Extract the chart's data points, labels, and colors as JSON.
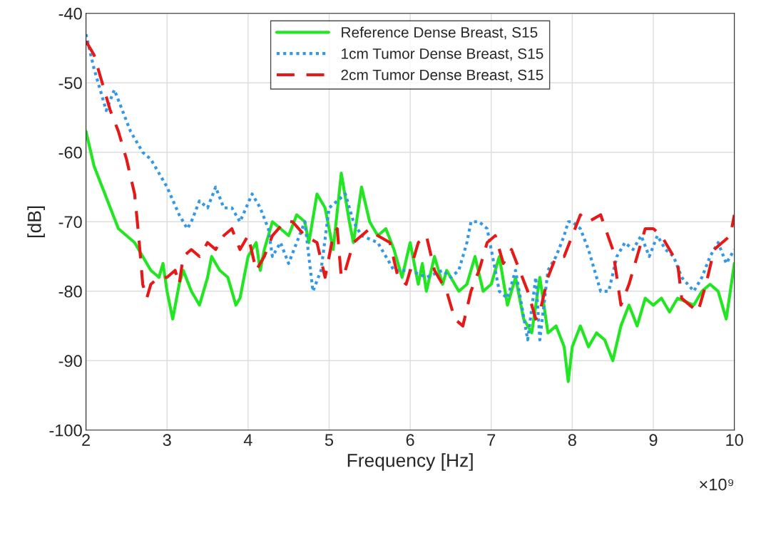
{
  "chart_data": {
    "type": "line",
    "xlabel": "Frequency [Hz]",
    "ylabel": "[dB]",
    "xlim": [
      2,
      10
    ],
    "ylim": [
      -100,
      -40
    ],
    "xticks": [
      2,
      3,
      4,
      5,
      6,
      7,
      8,
      9,
      10
    ],
    "yticks": [
      -100,
      -90,
      -80,
      -70,
      -60,
      -50,
      -40
    ],
    "grid": true,
    "legend": "top",
    "annotations": [
      "×10⁹"
    ],
    "series": [
      {
        "name": "Reference Dense Breast, S15",
        "color": "#22e622",
        "line_style": "solid",
        "x": [
          2.0,
          2.1,
          2.2,
          2.3,
          2.4,
          2.5,
          2.6,
          2.7,
          2.8,
          2.9,
          2.95,
          3.0,
          3.07,
          3.15,
          3.2,
          3.3,
          3.4,
          3.5,
          3.55,
          3.65,
          3.75,
          3.85,
          3.9,
          4.0,
          4.1,
          4.15,
          4.2,
          4.3,
          4.4,
          4.5,
          4.6,
          4.7,
          4.75,
          4.85,
          4.95,
          5.05,
          5.15,
          5.25,
          5.3,
          5.4,
          5.5,
          5.6,
          5.7,
          5.8,
          5.9,
          6.0,
          6.1,
          6.15,
          6.2,
          6.3,
          6.4,
          6.45,
          6.6,
          6.7,
          6.8,
          6.9,
          7.0,
          7.1,
          7.2,
          7.3,
          7.4,
          7.5,
          7.6,
          7.7,
          7.8,
          7.9,
          7.95,
          8.0,
          8.1,
          8.2,
          8.3,
          8.4,
          8.5,
          8.6,
          8.7,
          8.8,
          8.9,
          9.0,
          9.1,
          9.2,
          9.3,
          9.5,
          9.6,
          9.7,
          9.8,
          9.9,
          10.0
        ],
        "values": [
          -57,
          -62,
          -65,
          -68,
          -71,
          -72,
          -73,
          -75,
          -77,
          -78,
          -76,
          -80,
          -84,
          -79,
          -77,
          -80,
          -82,
          -78,
          -75,
          -77,
          -78,
          -82,
          -81,
          -75,
          -73,
          -77,
          -74,
          -70,
          -71,
          -72,
          -69,
          -70,
          -73,
          -66,
          -68,
          -74,
          -63,
          -70,
          -73,
          -65,
          -70,
          -72,
          -71,
          -74,
          -78,
          -73,
          -79,
          -76,
          -80,
          -75,
          -79,
          -77,
          -80,
          -79,
          -75,
          -80,
          -79,
          -75,
          -82,
          -78,
          -84,
          -86,
          -78,
          -86,
          -85,
          -88,
          -93,
          -88,
          -85,
          -88,
          -86,
          -87,
          -90,
          -85,
          -82,
          -85,
          -81,
          -82,
          -81,
          -83,
          -81,
          -82,
          -80,
          -79,
          -80,
          -84,
          -76
        ]
      },
      {
        "name": "1cm Tumor Dense Breast, S15",
        "color": "#3399e6",
        "line_style": "dotted",
        "x": [
          2.0,
          2.1,
          2.2,
          2.25,
          2.35,
          2.45,
          2.55,
          2.7,
          2.8,
          3.0,
          3.15,
          3.25,
          3.3,
          3.4,
          3.5,
          3.6,
          3.7,
          3.8,
          3.9,
          4.05,
          4.15,
          4.25,
          4.3,
          4.4,
          4.5,
          4.6,
          4.7,
          4.8,
          4.9,
          5.0,
          5.2,
          5.3,
          5.4,
          5.6,
          5.8,
          6.0,
          6.2,
          6.4,
          6.5,
          6.6,
          6.7,
          6.75,
          6.85,
          6.95,
          7.1,
          7.2,
          7.3,
          7.45,
          7.55,
          7.6,
          7.7,
          7.8,
          7.9,
          7.95,
          8.0,
          8.1,
          8.2,
          8.35,
          8.45,
          8.55,
          8.65,
          8.75,
          8.85,
          8.95,
          9.05,
          9.15,
          9.25,
          9.35,
          9.5,
          9.6,
          9.7,
          9.8,
          9.9,
          10.0
        ],
        "values": [
          -43,
          -48,
          -52,
          -54,
          -51,
          -54,
          -57,
          -60,
          -61,
          -65,
          -69,
          -71,
          -70,
          -67,
          -68,
          -65,
          -68,
          -68,
          -70,
          -66,
          -68,
          -71,
          -75,
          -73,
          -76,
          -73,
          -70,
          -80,
          -77,
          -68,
          -66,
          -70,
          -72,
          -73,
          -77,
          -77,
          -78,
          -77,
          -78,
          -77,
          -73,
          -70,
          -70,
          -71,
          -80,
          -81,
          -77,
          -87,
          -78,
          -87,
          -77,
          -75,
          -72,
          -70,
          -70,
          -71,
          -74,
          -80,
          -80,
          -75,
          -73,
          -74,
          -72,
          -75,
          -72,
          -74,
          -75,
          -78,
          -80,
          -78,
          -75,
          -73,
          -76,
          -74
        ]
      },
      {
        "name": "2cm Tumor Dense Breast, S15",
        "color": "#e61919",
        "line_style": "dashed",
        "x": [
          2.0,
          2.1,
          2.2,
          2.3,
          2.4,
          2.5,
          2.6,
          2.65,
          2.7,
          2.75,
          2.8,
          2.9,
          3.0,
          3.1,
          3.15,
          3.2,
          3.3,
          3.4,
          3.5,
          3.6,
          3.7,
          3.8,
          3.9,
          4.0,
          4.1,
          4.2,
          4.3,
          4.45,
          4.55,
          4.7,
          4.85,
          4.95,
          5.05,
          5.1,
          5.15,
          5.2,
          5.3,
          5.4,
          5.5,
          5.6,
          5.75,
          5.85,
          5.95,
          6.0,
          6.1,
          6.2,
          6.3,
          6.45,
          6.55,
          6.65,
          6.75,
          6.85,
          6.95,
          7.05,
          7.15,
          7.25,
          7.35,
          7.45,
          7.55,
          7.6,
          7.7,
          7.8,
          7.9,
          8.0,
          8.1,
          8.2,
          8.35,
          8.5,
          8.6,
          8.7,
          8.8,
          8.9,
          9.0,
          9.1,
          9.2,
          9.3,
          9.35,
          9.45,
          9.55,
          9.65,
          9.75,
          9.85,
          9.95,
          10.0
        ],
        "values": [
          -44,
          -46,
          -50,
          -54,
          -57,
          -61,
          -66,
          -72,
          -79,
          -81,
          -79,
          -78,
          -78,
          -77,
          -79,
          -75,
          -74,
          -75,
          -73,
          -74,
          -72,
          -71,
          -74,
          -72,
          -77,
          -75,
          -72,
          -70,
          -70,
          -72,
          -73,
          -78,
          -72,
          -71,
          -78,
          -77,
          -73,
          -72,
          -71,
          -72,
          -73,
          -78,
          -79,
          -77,
          -73,
          -72,
          -77,
          -80,
          -84,
          -85,
          -80,
          -77,
          -73,
          -72,
          -76,
          -74,
          -77,
          -80,
          -84,
          -83,
          -78,
          -75,
          -75,
          -72,
          -69,
          -70,
          -69,
          -74,
          -82,
          -79,
          -75,
          -71,
          -71,
          -72,
          -74,
          -76,
          -81,
          -82,
          -83,
          -79,
          -74,
          -73,
          -72,
          -69
        ]
      }
    ]
  }
}
